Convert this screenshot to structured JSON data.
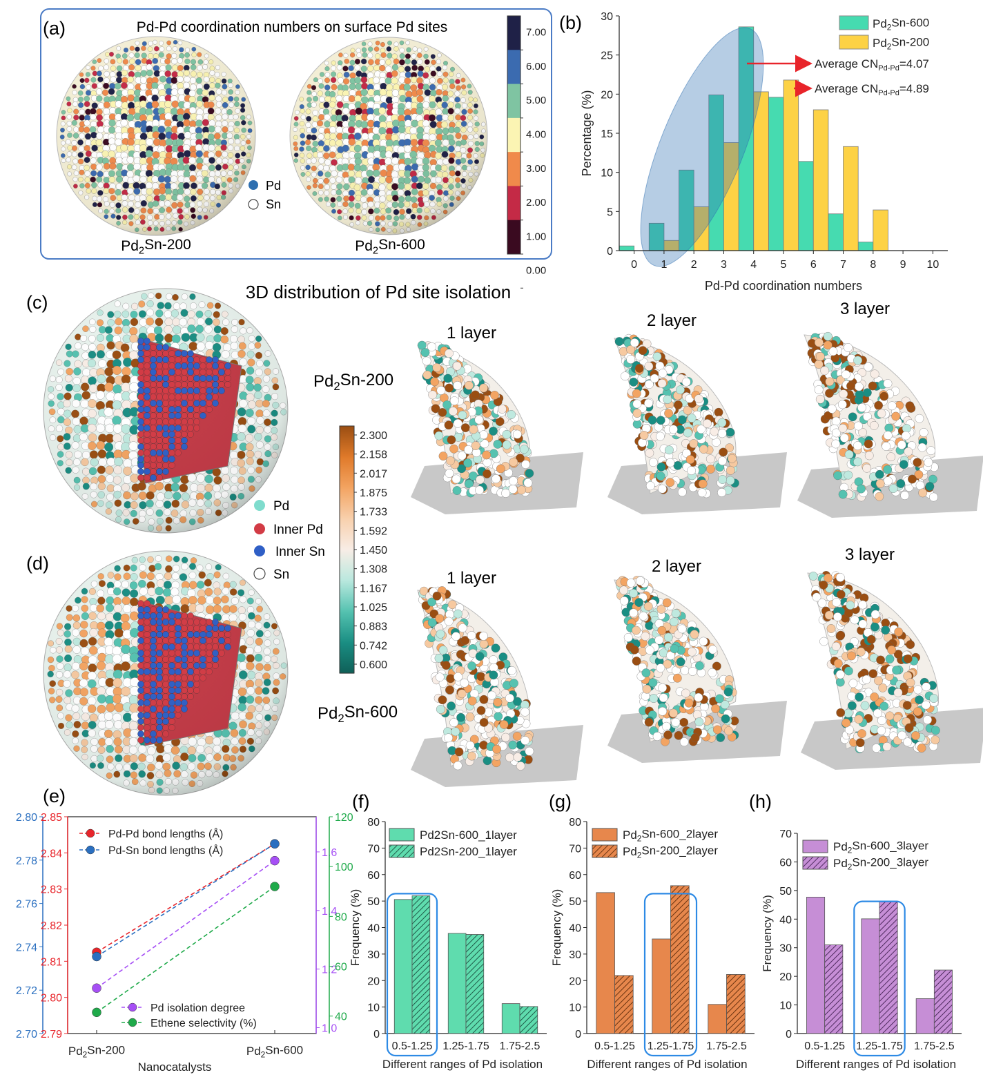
{
  "panel_labels": [
    "(a)",
    "(b)",
    "(c)",
    "(d)",
    "(e)",
    "(f)",
    "(g)",
    "(h)"
  ],
  "panel_a": {
    "title": "Pd-Pd coordination numbers on surface Pd sites",
    "colorbar_ticks": [
      "7.00",
      "6.00",
      "5.00",
      "4.00",
      "3.00",
      "2.00",
      "1.00",
      "0.00"
    ],
    "colorbar_colors": [
      "#1f2147",
      "#3b6bb0",
      "#7fc4a2",
      "#fbf4b3",
      "#f08a4b",
      "#c42a46",
      "#3a0a20"
    ],
    "legend": [
      "Pd",
      "Sn"
    ],
    "labels": [
      "Pd2Sn-200",
      "Pd2Sn-600"
    ]
  },
  "panel_c": {
    "title": "3D distribution of Pd site isolation",
    "row_labels": [
      "Pd2Sn-200",
      "Pd2Sn-600"
    ],
    "layers_top": [
      "1 layer",
      "2 layer",
      "3 layer"
    ],
    "layers_bottom": [
      "1 layer",
      "2 layer",
      "3 layer"
    ],
    "legend": [
      "Pd",
      "Inner Pd",
      "Inner Sn",
      "Sn"
    ],
    "colorbar_ticks": [
      "2.300",
      "2.158",
      "2.017",
      "1.875",
      "1.733",
      "1.592",
      "1.450",
      "1.308",
      "1.167",
      "1.025",
      "0.883",
      "0.742",
      "0.600"
    ],
    "colors": {
      "pd_high": "#9a4e12",
      "pd_mid": "#f3a462",
      "pd_neutral": "#f8ede6",
      "pd_low": "#1a8e83",
      "inner_pd": "#d23b45",
      "inner_sn": "#2f5fc6"
    }
  },
  "chart_data": [
    {
      "id": "b",
      "type": "bar",
      "xlabel": "Pd-Pd coordination numbers",
      "ylabel": "Percentage (%)",
      "xlim": [
        -0.5,
        10.5
      ],
      "ylim": [
        0,
        30
      ],
      "x_ticks": [
        0,
        1,
        2,
        3,
        4,
        5,
        6,
        7,
        8,
        9,
        10
      ],
      "y_ticks": [
        0,
        5,
        10,
        15,
        20,
        25,
        30
      ],
      "series": [
        {
          "name": "Pd2Sn-600",
          "color": "#46dbb0",
          "x": [
            0,
            1,
            2,
            3,
            4,
            5,
            6,
            7,
            8
          ],
          "values": [
            0.6,
            3.5,
            10.3,
            19.9,
            28.6,
            19.6,
            11.4,
            4.7,
            1.1
          ]
        },
        {
          "name": "Pd2Sn-200",
          "color": "#fdd245",
          "x": [
            1,
            2,
            3,
            4,
            5,
            6,
            7,
            8
          ],
          "values": [
            1.3,
            5.6,
            13.8,
            20.3,
            21.8,
            18.0,
            13.3,
            5.2
          ]
        }
      ],
      "annotations": [
        {
          "text": "Average CNPd-Pd=4.07",
          "base": "Average CN",
          "sub": "Pd-Pd",
          "value": "=4.07"
        },
        {
          "text": "Average CNPd-Pd=4.89",
          "base": "Average CN",
          "sub": "Pd-Pd",
          "value": "=4.89"
        }
      ]
    },
    {
      "id": "e",
      "type": "line",
      "xlabel": "Nanocatalysts",
      "categories": [
        "Pd2Sn-200",
        "Pd2Sn-600"
      ],
      "axes": [
        {
          "name": "Pd-Sn",
          "color": "#2a6fc0",
          "lim": [
            2.7,
            2.8
          ],
          "ticks": [
            "2.80",
            "2.78",
            "2.76",
            "2.74",
            "2.72",
            "2.70"
          ]
        },
        {
          "name": "Pd-Pd",
          "color": "#e8242a",
          "lim": [
            2.79,
            2.85
          ],
          "ticks": [
            "2.85",
            "2.84",
            "2.83",
            "2.82",
            "2.81",
            "2.80",
            "2.79"
          ]
        },
        {
          "name": "isolation",
          "color": "#a64ff5",
          "lim": [
            0.98,
            1.72
          ],
          "ticks": [
            "1.6",
            "1.4",
            "1.2",
            "1.0"
          ]
        },
        {
          "name": "selectivity",
          "color": "#1faa4a",
          "lim": [
            33,
            120
          ],
          "ticks": [
            "120",
            "100",
            "80",
            "60",
            "40"
          ]
        }
      ],
      "series": [
        {
          "name": "Pd-Pd bond lengths (Å)",
          "color": "#e8242a",
          "axis": "Pd-Pd",
          "values": [
            2.8125,
            2.8425
          ]
        },
        {
          "name": "Pd-Sn bond lengths (Å)",
          "color": "#2a6fc0",
          "axis": "Pd-Sn",
          "values": [
            2.7355,
            2.7875
          ]
        },
        {
          "name": "Pd isolation degree",
          "color": "#a64ff5",
          "axis": "isolation",
          "values": [
            1.135,
            1.57
          ]
        },
        {
          "name": "Ethene selectivity (%)",
          "color": "#1faa4a",
          "axis": "selectivity",
          "values": [
            41.5,
            92
          ]
        }
      ]
    },
    {
      "id": "f",
      "type": "bar",
      "xlabel": "Different ranges of Pd isolation",
      "ylabel": "Frequency (%)",
      "ylim": [
        0,
        80
      ],
      "y_ticks": [
        0,
        10,
        20,
        30,
        40,
        50,
        60,
        70,
        80
      ],
      "categories": [
        "0.5-1.25",
        "1.25-1.75",
        "1.75-2.5"
      ],
      "series": [
        {
          "name": "Pd2Sn-600_1layer",
          "color": "#5fdcae",
          "values": [
            50.6,
            37.8,
            11.3
          ]
        },
        {
          "name": "Pd2Sn-200_1layer",
          "color": "#5fdcae",
          "hatch": true,
          "values": [
            52.0,
            37.4,
            10.2
          ]
        }
      ]
    },
    {
      "id": "g",
      "type": "bar",
      "xlabel": "Different ranges of Pd isolation",
      "ylabel": "Frequency (%)",
      "ylim": [
        0,
        80
      ],
      "y_ticks": [
        0,
        10,
        20,
        30,
        40,
        50,
        60,
        70,
        80
      ],
      "categories": [
        "0.5-1.25",
        "1.25-1.75",
        "1.75-2.5"
      ],
      "series": [
        {
          "name": "Pd2Sn-600_2layer",
          "color": "#e7874c",
          "values": [
            53.2,
            35.7,
            11.0
          ]
        },
        {
          "name": "Pd2Sn-200_2layer",
          "color": "#e7874c",
          "hatch": true,
          "values": [
            21.9,
            55.8,
            22.3
          ]
        }
      ]
    },
    {
      "id": "h",
      "type": "bar",
      "xlabel": "Different ranges of Pd isolation",
      "ylabel": "Frequency (%)",
      "ylim": [
        0,
        70
      ],
      "y_ticks": [
        0,
        10,
        20,
        30,
        40,
        50,
        60,
        70
      ],
      "categories": [
        "0.5-1.25",
        "1.25-1.75",
        "1.75-2.5"
      ],
      "series": [
        {
          "name": "Pd2Sn-600_3layer",
          "color": "#c68ed6",
          "values": [
            47.7,
            40.1,
            12.2
          ]
        },
        {
          "name": "Pd2Sn-200_3layer",
          "color": "#c68ed6",
          "hatch": true,
          "values": [
            31.0,
            46.3,
            22.2
          ]
        }
      ]
    }
  ]
}
